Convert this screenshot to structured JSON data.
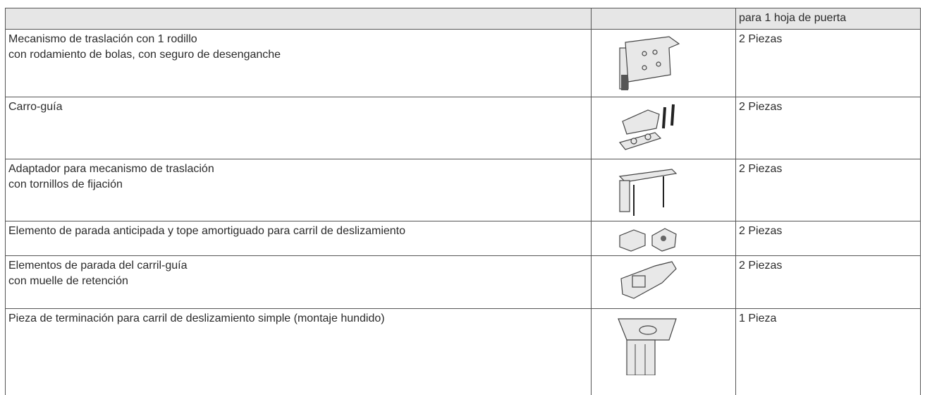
{
  "table": {
    "header": "para 1 hoja de puerta",
    "rows": [
      {
        "description": [
          "Mecanismo de traslación con 1 rodillo",
          "con rodamiento de bolas, con seguro de desenganche"
        ],
        "quantity": "2 Piezas"
      },
      {
        "description": [
          "Carro-guía"
        ],
        "quantity": "2 Piezas"
      },
      {
        "description": [
          "Adaptador para mecanismo de traslación",
          "con tornillos de fijación"
        ],
        "quantity": "2 Piezas"
      },
      {
        "description": [
          "Elemento de parada anticipada y tope amortiguado para carril de deslizamiento"
        ],
        "quantity": "2 Piezas"
      },
      {
        "description": [
          "Elementos de parada del carril-guía",
          "con muelle de retención"
        ],
        "quantity": "2 Piezas"
      },
      {
        "description": [
          "Pieza de terminación para carril de deslizamiento simple (montaje hundido)"
        ],
        "quantity": "1 Pieza"
      }
    ]
  }
}
